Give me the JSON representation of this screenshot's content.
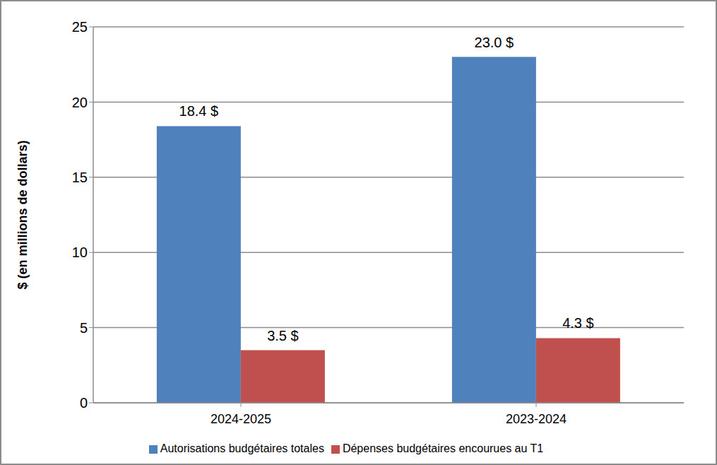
{
  "chart_data": {
    "type": "bar",
    "y_label": "$ (en millions de dollars)",
    "categories": [
      "2024-2025",
      "2023-2024"
    ],
    "series": [
      {
        "name": "Autorisations budgétaires totales",
        "color": "#4f81bd",
        "values": [
          18.4,
          23.0
        ],
        "value_labels": [
          "18.4 $",
          "23.0 $"
        ]
      },
      {
        "name": "Dépenses budgétaires encourues au T1",
        "color": "#c0504d",
        "values": [
          3.5,
          4.3
        ],
        "value_labels": [
          "3.5 $",
          "4.3 $"
        ]
      }
    ],
    "ylim": [
      0,
      25
    ],
    "yticks": [
      0,
      5,
      10,
      15,
      20,
      25
    ],
    "grid": true,
    "legend": "bottom",
    "data_labels": true
  }
}
